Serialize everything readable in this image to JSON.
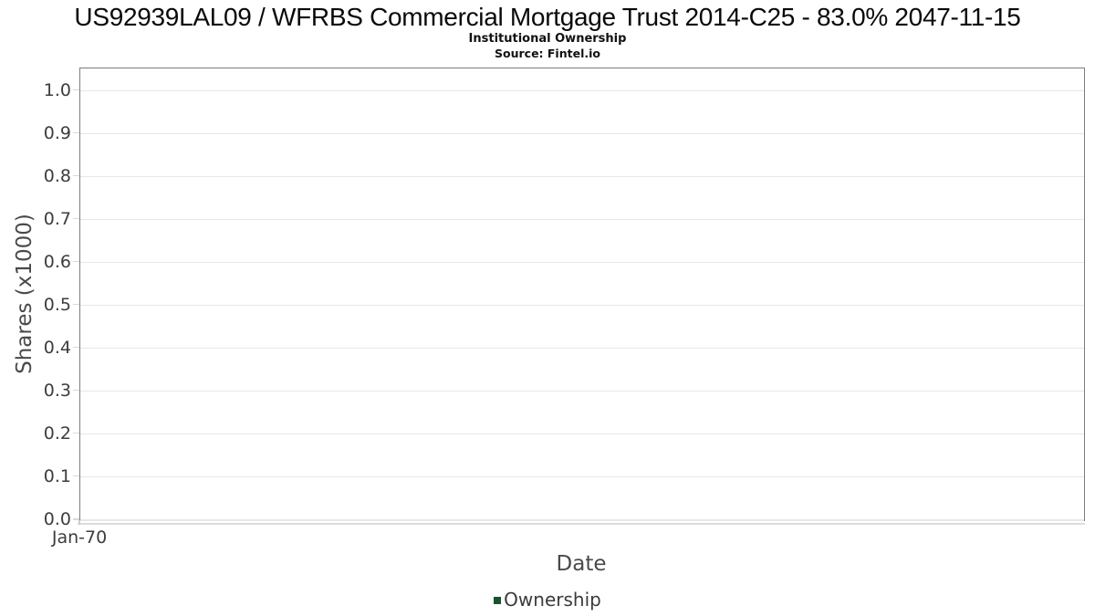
{
  "header": {
    "title": "US92939LAL09 / WFRBS Commercial Mortgage Trust 2014-C25 - 83.0% 2047-11-15",
    "subtitle": "Institutional Ownership",
    "source": "Source: Fintel.io"
  },
  "chart_data": {
    "type": "line",
    "title": "US92939LAL09 / WFRBS Commercial Mortgage Trust 2014-C25 - 83.0% 2047-11-15",
    "subtitle": "Institutional Ownership",
    "source_note": "Source: Fintel.io",
    "xlabel": "Date",
    "ylabel": "Shares (x1000)",
    "x_tick_labels": [
      "Jan-70"
    ],
    "y_tick_labels": [
      "0.0",
      "0.1",
      "0.2",
      "0.3",
      "0.4",
      "0.5",
      "0.6",
      "0.7",
      "0.8",
      "0.9",
      "1.0"
    ],
    "ylim": [
      0,
      1.053
    ],
    "grid": true,
    "legend_position": "bottom",
    "series": [
      {
        "name": "Ownership",
        "color": "#1a5230",
        "x": [],
        "values": []
      }
    ],
    "colors": {
      "plot_border": "#7c7c7c",
      "gridline": "#e7e7e7",
      "tick": "#d9d9d9",
      "tick_label": "#3d3d3d",
      "axis_label": "#4a4a4a",
      "legend_marker": "#1a5230",
      "background": "#ffffff"
    }
  }
}
